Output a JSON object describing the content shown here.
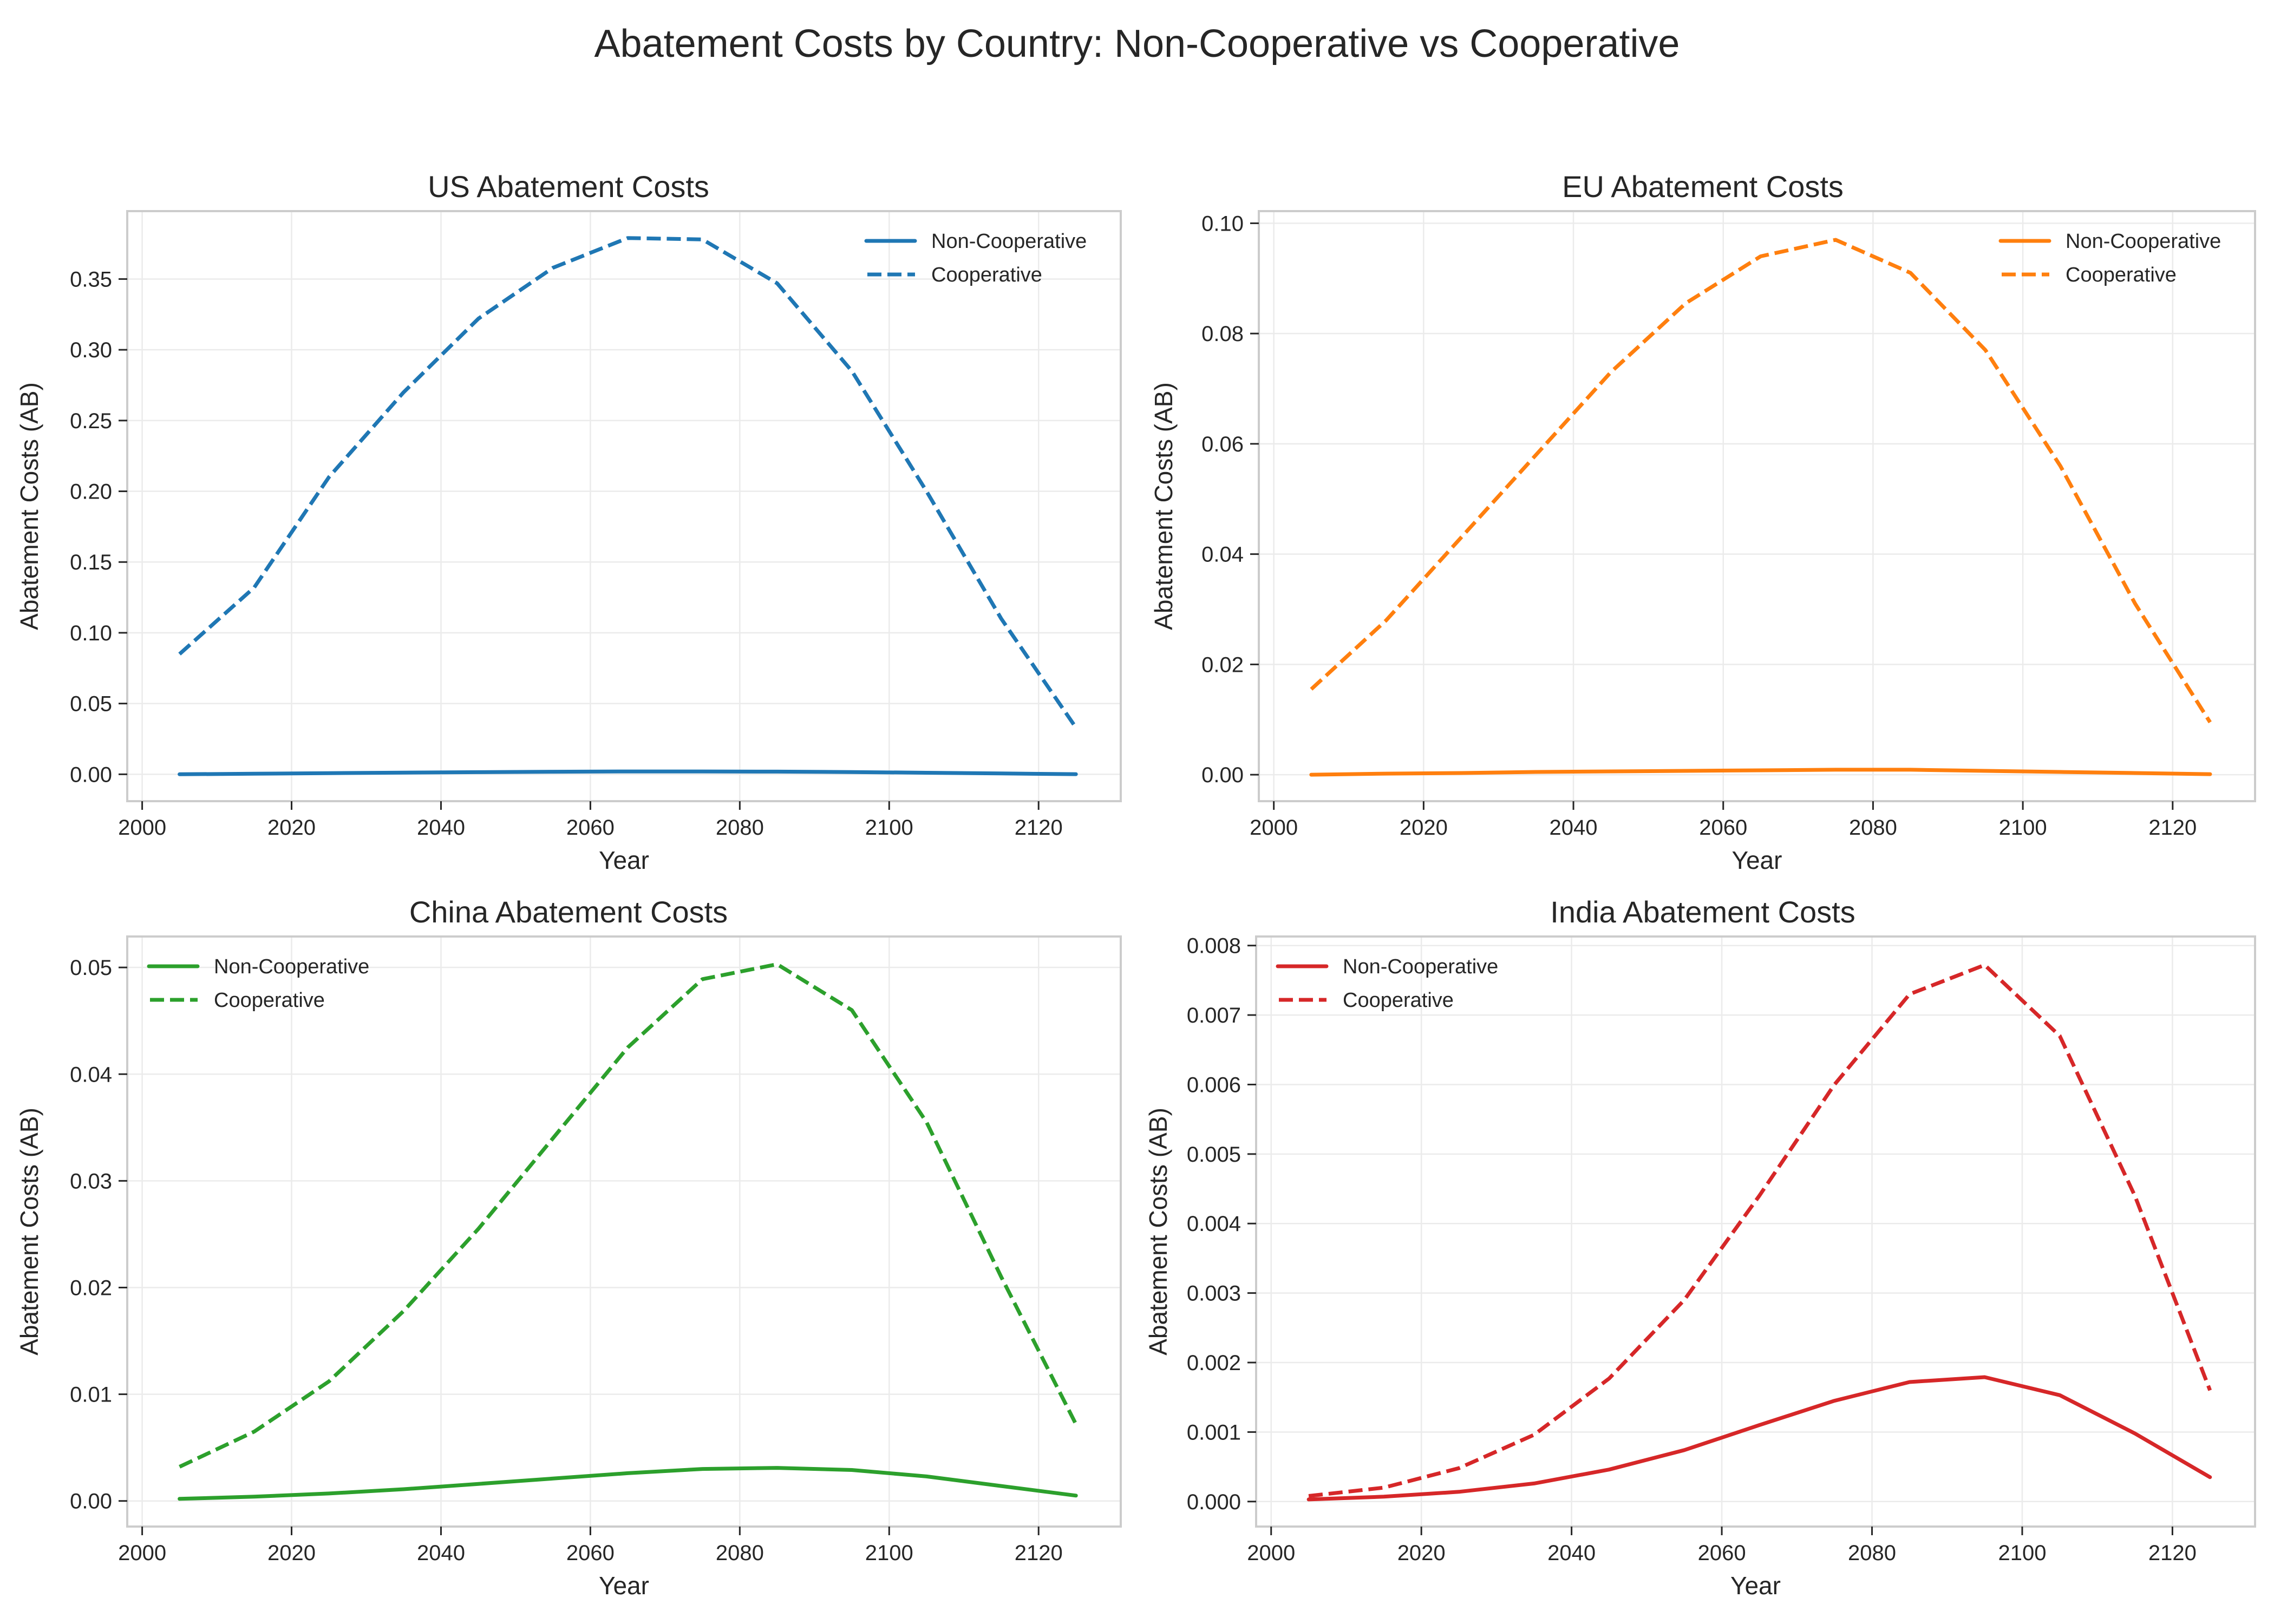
{
  "title": "Abatement Costs by Country: Non-Cooperative vs Cooperative",
  "chart_data": [
    {
      "type": "line",
      "title": "US Abatement Costs",
      "xlabel": "Year",
      "ylabel": "Abatement Costs (AB)",
      "color": "#1f77b4",
      "xlim": [
        1998,
        2131
      ],
      "ylim": [
        -0.019,
        0.398
      ],
      "xticks": [
        2000,
        2020,
        2040,
        2060,
        2080,
        2100,
        2120
      ],
      "yticks": [
        0.0,
        0.05,
        0.1,
        0.15,
        0.2,
        0.25,
        0.3,
        0.35
      ],
      "ytick_labels": [
        "0.00",
        "0.05",
        "0.10",
        "0.15",
        "0.20",
        "0.25",
        "0.30",
        "0.35"
      ],
      "legend_position": "upper-right",
      "grid": true,
      "x": [
        2005,
        2015,
        2025,
        2035,
        2045,
        2055,
        2065,
        2075,
        2085,
        2095,
        2105,
        2115,
        2125
      ],
      "series": [
        {
          "name": "Non-Cooperative",
          "style": "solid",
          "values": [
            0.0,
            0.0004,
            0.0008,
            0.0012,
            0.0015,
            0.0018,
            0.002,
            0.002,
            0.0019,
            0.0016,
            0.0011,
            0.0006,
            0.0001
          ]
        },
        {
          "name": "Cooperative",
          "style": "dashed",
          "values": [
            0.085,
            0.132,
            0.21,
            0.27,
            0.322,
            0.358,
            0.379,
            0.378,
            0.347,
            0.285,
            0.2,
            0.11,
            0.033
          ]
        }
      ]
    },
    {
      "type": "line",
      "title": "EU Abatement Costs",
      "xlabel": "Year",
      "ylabel": "Abatement Costs (AB)",
      "color": "#ff7f0e",
      "xlim": [
        1998,
        2131
      ],
      "ylim": [
        -0.0048,
        0.1022
      ],
      "xticks": [
        2000,
        2020,
        2040,
        2060,
        2080,
        2100,
        2120
      ],
      "yticks": [
        0.0,
        0.02,
        0.04,
        0.06,
        0.08,
        0.1
      ],
      "ytick_labels": [
        "0.00",
        "0.02",
        "0.04",
        "0.06",
        "0.08",
        "0.10"
      ],
      "legend_position": "upper-right",
      "grid": true,
      "x": [
        2005,
        2015,
        2025,
        2035,
        2045,
        2055,
        2065,
        2075,
        2085,
        2095,
        2105,
        2115,
        2125
      ],
      "series": [
        {
          "name": "Non-Cooperative",
          "style": "solid",
          "values": [
            0.0,
            0.0002,
            0.0003,
            0.0005,
            0.0006,
            0.0007,
            0.0008,
            0.0009,
            0.0009,
            0.0007,
            0.0005,
            0.0003,
            0.0001
          ]
        },
        {
          "name": "Cooperative",
          "style": "dashed",
          "values": [
            0.0155,
            0.028,
            0.043,
            0.058,
            0.073,
            0.0855,
            0.094,
            0.097,
            0.091,
            0.077,
            0.056,
            0.031,
            0.0095
          ]
        }
      ]
    },
    {
      "type": "line",
      "title": "China Abatement Costs",
      "xlabel": "Year",
      "ylabel": "Abatement Costs (AB)",
      "color": "#2ca02c",
      "xlim": [
        1998,
        2131
      ],
      "ylim": [
        -0.0024,
        0.0529
      ],
      "xticks": [
        2000,
        2020,
        2040,
        2060,
        2080,
        2100,
        2120
      ],
      "yticks": [
        0.0,
        0.01,
        0.02,
        0.03,
        0.04,
        0.05
      ],
      "ytick_labels": [
        "0.00",
        "0.01",
        "0.02",
        "0.03",
        "0.04",
        "0.05"
      ],
      "legend_position": "upper-left",
      "grid": true,
      "x": [
        2005,
        2015,
        2025,
        2035,
        2045,
        2055,
        2065,
        2075,
        2085,
        2095,
        2105,
        2115,
        2125
      ],
      "series": [
        {
          "name": "Non-Cooperative",
          "style": "solid",
          "values": [
            0.0002,
            0.0004,
            0.0007,
            0.0011,
            0.0016,
            0.0021,
            0.0026,
            0.003,
            0.0031,
            0.0029,
            0.0023,
            0.0014,
            0.0005
          ]
        },
        {
          "name": "Cooperative",
          "style": "dashed",
          "values": [
            0.0032,
            0.0065,
            0.0112,
            0.0178,
            0.0255,
            0.034,
            0.0425,
            0.0489,
            0.0503,
            0.046,
            0.0355,
            0.021,
            0.0072
          ]
        }
      ]
    },
    {
      "type": "line",
      "title": "India Abatement Costs",
      "xlabel": "Year",
      "ylabel": "Abatement Costs (AB)",
      "color": "#d62728",
      "xlim": [
        1998,
        2131
      ],
      "ylim": [
        -0.00036,
        0.00813
      ],
      "xticks": [
        2000,
        2020,
        2040,
        2060,
        2080,
        2100,
        2120
      ],
      "yticks": [
        0.0,
        0.001,
        0.002,
        0.003,
        0.004,
        0.005,
        0.006,
        0.007,
        0.008
      ],
      "ytick_labels": [
        "0.000",
        "0.001",
        "0.002",
        "0.003",
        "0.004",
        "0.005",
        "0.006",
        "0.007",
        "0.008"
      ],
      "legend_position": "upper-left",
      "grid": true,
      "x": [
        2005,
        2015,
        2025,
        2035,
        2045,
        2055,
        2065,
        2075,
        2085,
        2095,
        2105,
        2115,
        2125
      ],
      "series": [
        {
          "name": "Non-Cooperative",
          "style": "solid",
          "values": [
            3e-05,
            7e-05,
            0.00014,
            0.00026,
            0.00046,
            0.00074,
            0.0011,
            0.00145,
            0.00172,
            0.00179,
            0.00153,
            0.00098,
            0.00035
          ]
        },
        {
          "name": "Cooperative",
          "style": "dashed",
          "values": [
            8e-05,
            0.0002,
            0.00048,
            0.00096,
            0.00177,
            0.0029,
            0.0044,
            0.006,
            0.0073,
            0.00772,
            0.0067,
            0.0044,
            0.0016
          ]
        }
      ]
    }
  ]
}
